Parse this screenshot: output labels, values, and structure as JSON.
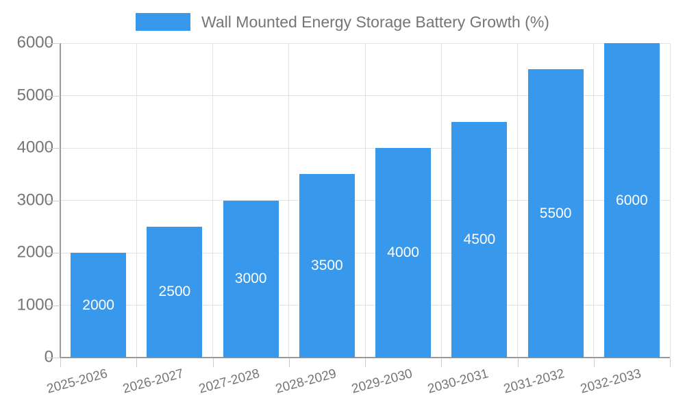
{
  "chart_data": {
    "type": "bar",
    "title": "Wall Mounted Energy Storage Battery Growth (%)",
    "legend_position": "top-center",
    "categories": [
      "2025-2026",
      "2026-2027",
      "2027-2028",
      "2028-2029",
      "2029-2030",
      "2030-2031",
      "2031-2032",
      "2032-2033"
    ],
    "values": [
      2000,
      2500,
      3000,
      3500,
      4000,
      4500,
      5500,
      6000
    ],
    "xlabel": "",
    "ylabel": "",
    "ylim": [
      0,
      6000
    ],
    "yticks": [
      0,
      1000,
      2000,
      3000,
      4000,
      5000,
      6000
    ],
    "grid": true,
    "colors": {
      "bar": "#3898EC",
      "value_label": "#FFFFFF",
      "axis_text": "#757575",
      "axis_line": "#999999",
      "gridline": "#E3E3E3",
      "tick": "#CCCCCC",
      "background": "#FFFFFF"
    }
  }
}
